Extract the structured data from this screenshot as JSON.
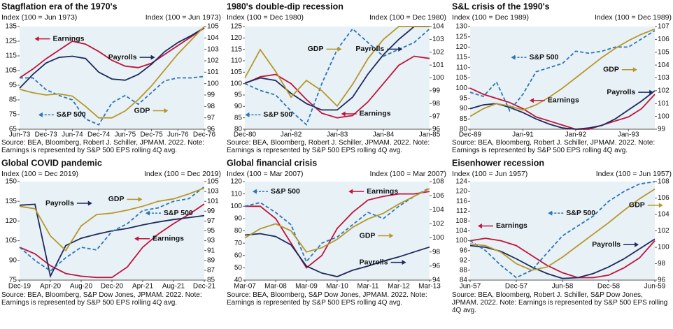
{
  "chart_data": [
    {
      "type": "line",
      "title": "Stagflation era of the 1970's",
      "y_label": "Index (100 = Jun 1973)",
      "y2_label": "Index (100 = Jun 1973)",
      "categories": [
        "Jun-73",
        null,
        "Dec-73",
        null,
        "Jun-74",
        null,
        "Dec-74",
        null,
        "Jun-75",
        null,
        "Dec-75",
        null,
        "Jun-76",
        null,
        "Dec-76"
      ],
      "ylim": [
        65,
        135
      ],
      "yticks": [
        65,
        75,
        85,
        95,
        105,
        115,
        125,
        135
      ],
      "y2lim": [
        96,
        105
      ],
      "y2ticks": [
        96,
        97,
        98,
        99,
        100,
        101,
        102,
        103,
        104,
        105
      ],
      "series": [
        {
          "name": "Earnings",
          "color": "#c0143c",
          "values": [
            100,
            106,
            113,
            119,
            125,
            123,
            118,
            112,
            108,
            107,
            110,
            116,
            122,
            128,
            134
          ]
        },
        {
          "name": "Payrolls",
          "color": "#1f2a5c",
          "axis": "y2",
          "values": [
            99.6,
            100.8,
            101.8,
            102.3,
            102.4,
            102.2,
            101.0,
            100.4,
            100.3,
            100.8,
            101.7,
            102.8,
            103.6,
            104.2,
            104.9
          ]
        },
        {
          "name": "S&P 500",
          "color": "#2e75b6",
          "dashed": true,
          "values": [
            100,
            100,
            92,
            88,
            85,
            72,
            68,
            83,
            88,
            82,
            90,
            98,
            100,
            100,
            101
          ]
        },
        {
          "name": "GDP",
          "color": "#b8972a",
          "axis": "y2",
          "values": [
            99.5,
            99.2,
            99.0,
            99.1,
            98.9,
            98.0,
            97.0,
            97.0,
            97.6,
            98.6,
            99.8,
            101.2,
            102.6,
            103.8,
            105
          ]
        }
      ],
      "source": "Source: BEA, Bloomberg, Robert J. Schiller, JPMAM. 2022. Note: Earnings is represented by S&P 500 EPS rolling 4Q avg."
    },
    {
      "type": "line",
      "title": "1980's double-dip recession",
      "y_label": "Index (100 = Dec 1980)",
      "y2_label": "Index (100 = Dec 1980)",
      "categories": [
        "Dec-80",
        null,
        null,
        "Jan-82",
        null,
        null,
        "Jan-83",
        null,
        null,
        "Jan-84",
        null,
        null,
        "Jan-85"
      ],
      "ylim": [
        80,
        125
      ],
      "yticks": [
        80,
        85,
        90,
        95,
        100,
        105,
        110,
        115,
        120,
        125
      ],
      "y2lim": [
        96,
        104
      ],
      "y2ticks": [
        96,
        97,
        98,
        99,
        100,
        101,
        102,
        103,
        104
      ],
      "series": [
        {
          "name": "Earnings",
          "color": "#c0143c",
          "values": [
            100,
            103,
            104,
            100,
            93,
            87,
            85,
            86,
            92,
            100,
            108,
            112,
            111
          ]
        },
        {
          "name": "Payrolls",
          "color": "#1f2a5c",
          "axis": "y2",
          "values": [
            99.6,
            100,
            99.8,
            98.8,
            98,
            97.5,
            97.5,
            98.5,
            100.3,
            101.8,
            103,
            104,
            104
          ]
        },
        {
          "name": "S&P 500",
          "color": "#2e75b6",
          "dashed": true,
          "values": [
            100,
            97,
            95,
            88,
            82,
            100,
            115,
            124,
            118,
            112,
            115,
            118,
            124
          ]
        },
        {
          "name": "GDP",
          "color": "#b8972a",
          "axis": "y2",
          "values": [
            100,
            102.2,
            100.5,
            98.5,
            99.8,
            99,
            97.8,
            99.5,
            101.5,
            103,
            104,
            104,
            104
          ]
        }
      ],
      "source": "Source: BEA, Bloomberg, Robert J. Schiller, JPMAM. 2022. Note: Earnings is represented by S&P 500 EPS rolling 4Q avg."
    },
    {
      "type": "line",
      "title": "S&L crisis of the 1990's",
      "y_label": "Index (100 = Dec 1989)",
      "y2_label": "Index (100 = Dec 1989)",
      "categories": [
        "Dec-89",
        null,
        null,
        null,
        "Jan-91",
        null,
        null,
        null,
        "Jan-92",
        null,
        null,
        null,
        "Jan-93",
        null,
        null
      ],
      "ylim": [
        80,
        130
      ],
      "yticks": [
        80,
        85,
        90,
        95,
        100,
        105,
        110,
        115,
        120,
        125,
        130
      ],
      "y2lim": [
        99,
        107
      ],
      "y2ticks": [
        99,
        100,
        101,
        102,
        103,
        104,
        105,
        106,
        107
      ],
      "series": [
        {
          "name": "Earnings",
          "color": "#c0143c",
          "values": [
            100,
            97,
            95,
            93,
            90,
            86,
            84,
            82,
            80,
            80,
            82,
            84,
            86,
            90,
            97
          ]
        },
        {
          "name": "Payrolls",
          "color": "#1f2a5c",
          "axis": "y2",
          "values": [
            100.6,
            100.9,
            101,
            100.7,
            100.3,
            99.8,
            99.4,
            99.1,
            99.0,
            99.1,
            99.3,
            99.8,
            100.5,
            101.2,
            102.0
          ]
        },
        {
          "name": "S&P 500",
          "color": "#2e75b6",
          "dashed": true,
          "values": [
            98,
            96,
            103,
            89,
            97,
            108,
            110,
            112,
            118,
            117,
            118,
            120,
            120,
            124,
            128
          ]
        },
        {
          "name": "GDP",
          "color": "#b8972a",
          "axis": "y2",
          "values": [
            100,
            100.6,
            101,
            100.8,
            100.5,
            100.9,
            101.5,
            102.2,
            103,
            103.8,
            104.6,
            105.3,
            105.9,
            106.4,
            106.8
          ]
        }
      ],
      "source": "Source: BEA, Bloomberg, Robert J. Schiller, JPMAM. 2022. Note: Earnings is represented by S&P 500 EPS rolling 4Q avg."
    },
    {
      "type": "line",
      "title": "Global COVID pandemic",
      "y_label": "Index (100 = Dec 2019)",
      "y2_label": "Index (100 = Dec 2019)",
      "categories": [
        "Dec-19",
        null,
        "Apr-20",
        null,
        "Aug-20",
        null,
        "Dec-20",
        null,
        "Apr-21",
        null,
        "Aug-21",
        null,
        "Dec-21"
      ],
      "ylim": [
        75,
        150
      ],
      "yticks": [
        75,
        90,
        105,
        120,
        135,
        150
      ],
      "y2lim": [
        85,
        105
      ],
      "y2ticks": [
        85,
        87,
        89,
        91,
        93,
        95,
        97,
        99,
        101,
        103,
        105
      ],
      "series": [
        {
          "name": "Earnings",
          "color": "#c0143c",
          "values": [
            100,
            95,
            86,
            80,
            78,
            77,
            77,
            85,
            100,
            110,
            118,
            125,
            133
          ]
        },
        {
          "name": "Payrolls",
          "color": "#1f2a5c",
          "axis": "y2",
          "values": [
            100.2,
            100.4,
            85.8,
            92,
            93.5,
            94.3,
            95,
            95.5,
            96.2,
            96.8,
            97.3,
            97.7,
            98.1
          ]
        },
        {
          "name": "S&P 500",
          "color": "#2e75b6",
          "dashed": true,
          "values": [
            100,
            90,
            82,
            92,
            100,
            98,
            112,
            118,
            128,
            130,
            135,
            137,
            146
          ]
        },
        {
          "name": "GDP",
          "color": "#b8972a",
          "axis": "y2",
          "values": [
            100,
            99.5,
            94,
            91,
            96,
            98.3,
            98.6,
            99.2,
            100,
            101,
            101.5,
            102.5,
            103.7
          ]
        }
      ],
      "source": "Source: BEA, Bloomberg, S&P Dow Jones, JPMAM. 2022. Note: Earnings is represented by S&P 500 EPS rolling 4Q avg."
    },
    {
      "type": "line",
      "title": "Global financial crisis",
      "y_label": "Index (100 = Mar 2007)",
      "y2_label": "Index (100 = Mar 2007)",
      "categories": [
        "Mar-07",
        null,
        "Mar-08",
        null,
        "Mar-09",
        null,
        "Mar-10",
        null,
        "Mar-11",
        null,
        "Mar-12",
        null,
        "Mar-13"
      ],
      "ylim": [
        40,
        120
      ],
      "yticks": [
        40,
        50,
        60,
        70,
        80,
        90,
        100,
        110,
        120
      ],
      "y2lim": [
        94,
        108
      ],
      "y2ticks": [
        94,
        96,
        98,
        100,
        102,
        104,
        106,
        108
      ],
      "series": [
        {
          "name": "Earnings",
          "color": "#c0143c",
          "values": [
            100,
            100,
            90,
            70,
            50,
            60,
            82,
            95,
            105,
            108,
            110,
            110,
            112
          ]
        },
        {
          "name": "Payrolls",
          "color": "#1f2a5c",
          "axis": "y2",
          "values": [
            100.4,
            100.6,
            100.2,
            99,
            96,
            95,
            94.5,
            95.4,
            96,
            96.7,
            97.3,
            98,
            98.7
          ]
        },
        {
          "name": "S&P 500",
          "color": "#2e75b6",
          "dashed": true,
          "values": [
            100,
            103,
            95,
            85,
            55,
            70,
            75,
            85,
            95,
            90,
            100,
            108,
            115
          ]
        },
        {
          "name": "GDP",
          "color": "#b8972a",
          "axis": "y2",
          "values": [
            100,
            101.3,
            102,
            101,
            98,
            98.6,
            99.8,
            101.5,
            102.7,
            103.5,
            104.8,
            105.9,
            107
          ]
        }
      ],
      "source": "Source: BEA, Bloomberg, S&P Dow Jones, JPMAM. 2022. Note: Earnings is represented by S&P 500 EPS rolling 4Q avg."
    },
    {
      "type": "line",
      "title": "Eisenhower recession",
      "y_label": "Index (100 = Jun 1957)",
      "y2_label": "Index (100 = Jun 1957)",
      "categories": [
        "Jun-57",
        null,
        null,
        "Dec-57",
        null,
        null,
        "Jun-58",
        null,
        null,
        "Dec-58",
        null,
        null,
        "Jun-59"
      ],
      "ylim": [
        84,
        124
      ],
      "yticks": [
        84,
        88,
        92,
        96,
        100,
        104,
        108,
        112,
        116,
        120,
        124
      ],
      "y2lim": [
        96,
        108
      ],
      "y2ticks": [
        96,
        98,
        100,
        102,
        104,
        106,
        108
      ],
      "series": [
        {
          "name": "Earnings",
          "color": "#c0143c",
          "values": [
            100,
            101,
            100,
            98,
            94,
            90,
            87,
            85,
            85,
            86,
            89,
            93,
            100
          ]
        },
        {
          "name": "Payrolls",
          "color": "#1f2a5c",
          "axis": "y2",
          "values": [
            100.2,
            100,
            99.5,
            98.6,
            97.6,
            96.8,
            96.2,
            96.3,
            96.8,
            97.6,
            98.6,
            99.8,
            101
          ]
        },
        {
          "name": "S&P 500",
          "color": "#2e75b6",
          "dashed": true,
          "values": [
            100,
            96,
            90,
            85,
            88,
            95,
            102,
            106,
            110,
            116,
            120,
            123,
            124
          ]
        },
        {
          "name": "GDP",
          "color": "#b8972a",
          "axis": "y2",
          "values": [
            100.4,
            100.2,
            99.4,
            98,
            97.2,
            97.6,
            98.8,
            100.2,
            101.6,
            103,
            104.5,
            105.9,
            107.1
          ]
        }
      ],
      "source": "Source: BEA, Bloomberg, Robert J. Schiller, S&P Dow Jones, JPMAM. 2022. Note: Earnings is represented by S&P 500 EPS rolling 4Q avg."
    }
  ]
}
